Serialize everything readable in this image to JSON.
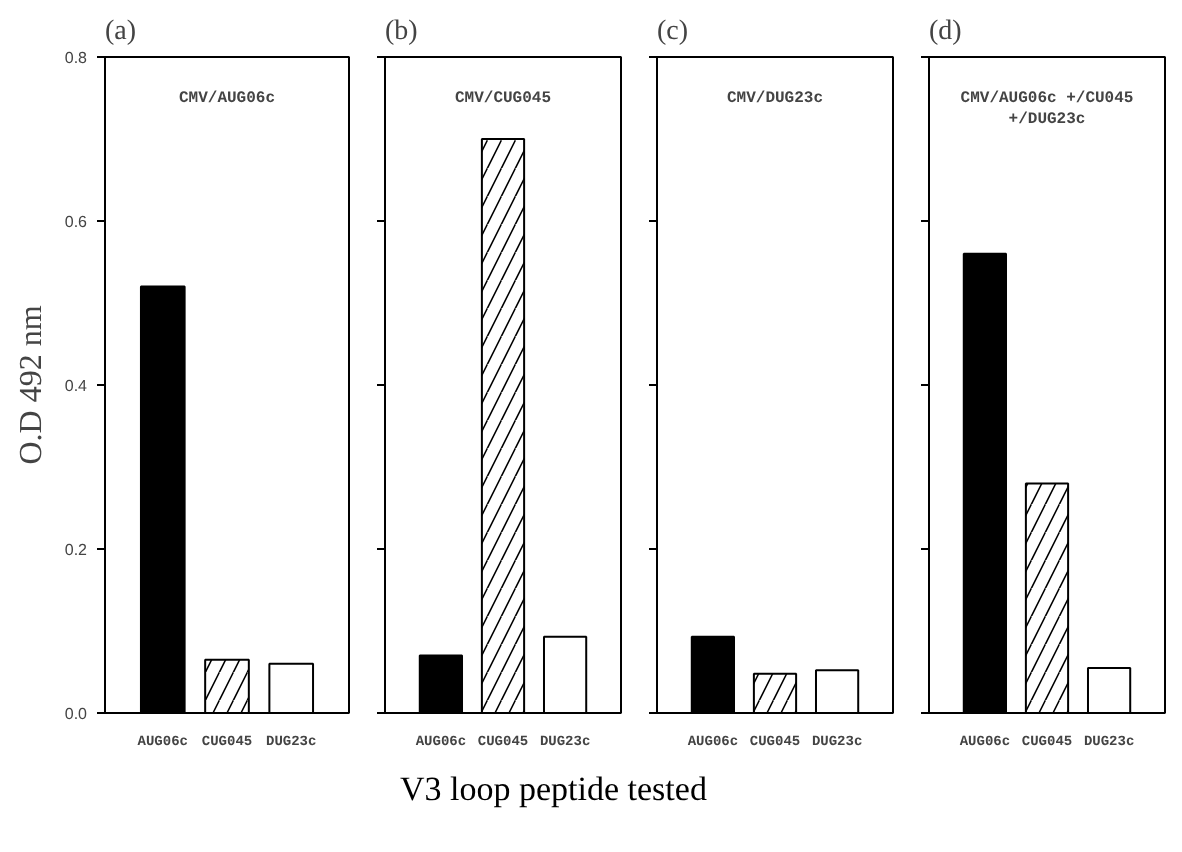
{
  "chart_data": [
    {
      "type": "bar",
      "title": "(a)",
      "ylabel": "O.D 492 nm",
      "xlabel": "V3 loop peptide tested",
      "annotations": [
        "CMV/AUG06c"
      ],
      "categories": [
        "AUG06c",
        "CUG045",
        "DUG23c"
      ],
      "values": [
        0.52,
        0.065,
        0.06
      ],
      "colors": [
        "#000000",
        "#ffffff",
        "#ffffff"
      ],
      "ylim": [
        0,
        0.8
      ],
      "yticks": [
        {
          "value": 0,
          "label": "0.0"
        },
        0.2,
        0.4,
        0.6,
        0.8
      ],
      "grid": false
    },
    {
      "type": "bar",
      "title": "(b)",
      "annotations": [
        "CMV/CUG045"
      ],
      "categories": [
        "AUG06c",
        "CUG045",
        "DUG23c"
      ],
      "values": [
        0.07,
        0.7,
        0.093
      ],
      "colors": [
        "#000000",
        "#ffffff",
        "#ffffff"
      ],
      "ylim": [
        0,
        0.8
      ],
      "yticks": [
        0,
        0.2,
        0.4,
        0.6,
        0.8
      ],
      "tick_labels": "x",
      "grid": false
    },
    {
      "type": "bar",
      "title": "(c)",
      "annotations": [
        "CMV/DUG23c"
      ],
      "categories": [
        "AUG06c",
        "CUG045",
        "DUG23c"
      ],
      "values": [
        0.093,
        0.048,
        0.052
      ],
      "colors": [
        "#000000",
        "#ffffff",
        "#ffffff"
      ],
      "ylim": [
        0,
        0.8
      ],
      "yticks": [
        0,
        0.2,
        0.4,
        0.6,
        0.8
      ],
      "tick_labels": "x",
      "grid": false
    },
    {
      "type": "bar",
      "title": "(d)",
      "annotations": [
        "CMV/AUG06c +/CU045\n+/DUG23c"
      ],
      "categories": [
        "AUG06c",
        "CUG045",
        "DUG23c"
      ],
      "values": [
        0.56,
        0.28,
        0.055
      ],
      "colors": [
        "#000000",
        "#ffffff",
        "#ffffff"
      ],
      "ylim": [
        0,
        0.8
      ],
      "yticks": [
        0,
        0.2,
        0.4,
        0.6,
        0.8
      ],
      "tick_labels": "x",
      "grid": false
    }
  ]
}
